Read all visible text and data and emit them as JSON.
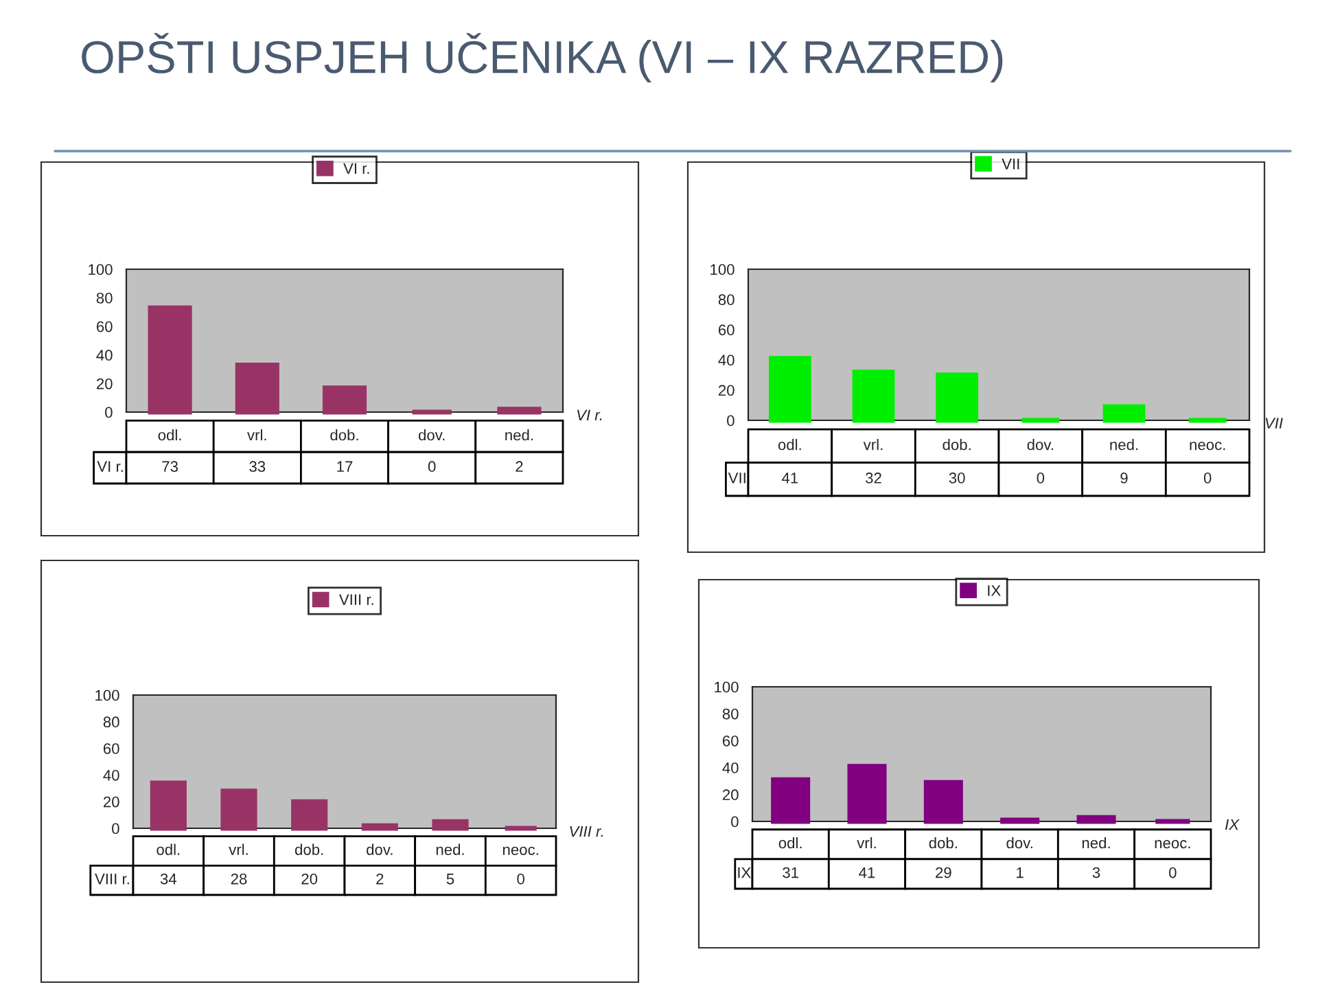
{
  "chart_data": [
    {
      "type": "bar",
      "title": "OPŠTI USPJEH UČENIKA (VI – IX RAZRED)",
      "categories": [
        "odl.",
        "vrl.",
        "dob.",
        "dov.",
        "ned."
      ],
      "series": [
        {
          "name": "VI r.",
          "color": "#993366",
          "values": [
            73,
            33,
            17,
            0,
            2
          ]
        }
      ],
      "ylim": [
        0,
        100
      ],
      "yticks": [
        0,
        20,
        40,
        60,
        80,
        100
      ],
      "data_labels": true,
      "legend": "top",
      "grid": false
    },
    {
      "type": "bar",
      "categories": [
        "odl.",
        "vrl.",
        "dob.",
        "dov.",
        "ned.",
        "neoc."
      ],
      "series": [
        {
          "name": "VII",
          "color": "#00ee00",
          "values": [
            41,
            32,
            30,
            0,
            9,
            0
          ]
        }
      ],
      "ylim": [
        0,
        100
      ],
      "yticks": [
        0,
        20,
        40,
        60,
        80,
        100
      ],
      "data_labels": true,
      "legend": "top",
      "grid": false
    },
    {
      "type": "bar",
      "categories": [
        "odl.",
        "vrl.",
        "dob.",
        "dov.",
        "ned.",
        "neoc."
      ],
      "series": [
        {
          "name": "VIII r.",
          "color": "#993366",
          "values": [
            34,
            28,
            20,
            2,
            5,
            0
          ]
        }
      ],
      "ylim": [
        0,
        100
      ],
      "yticks": [
        0,
        20,
        40,
        60,
        80,
        100
      ],
      "data_labels": true,
      "legend": "top",
      "grid": false
    },
    {
      "type": "bar",
      "categories": [
        "odl.",
        "vrl.",
        "dob.",
        "dov.",
        "ned.",
        "neoc."
      ],
      "series": [
        {
          "name": "IX",
          "color": "#800080",
          "values": [
            31,
            41,
            29,
            1,
            3,
            0
          ]
        }
      ],
      "ylim": [
        0,
        100
      ],
      "yticks": [
        0,
        20,
        40,
        60,
        80,
        100
      ],
      "data_labels": true,
      "legend": "top",
      "grid": false
    }
  ]
}
